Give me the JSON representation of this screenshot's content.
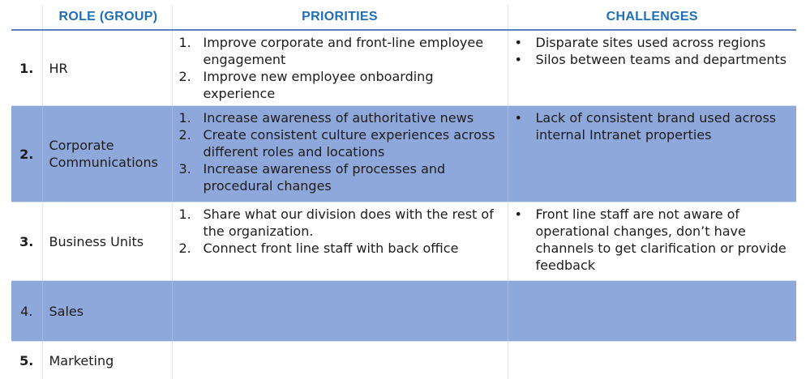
{
  "headers": {
    "role": "ROLE (GROUP)",
    "priorities": "PRIORITIES",
    "challenges": "CHALLENGES"
  },
  "rows": [
    {
      "num": "1.",
      "role": "HR",
      "priorities": [
        {
          "marker": "1.",
          "text": "Improve corporate and front-line employee engagement"
        },
        {
          "marker": "2.",
          "text": "Improve new employee onboarding experience"
        }
      ],
      "challenges": [
        {
          "marker": "•",
          "text": "Disparate sites used across regions"
        },
        {
          "marker": "•",
          "text": "Silos between teams and departments"
        }
      ]
    },
    {
      "num": "2.",
      "role": "Corporate Communications",
      "priorities": [
        {
          "marker": "1.",
          "text": "Increase awareness of authoritative news"
        },
        {
          "marker": "2.",
          "text": "Create consistent culture experiences across different roles and locations"
        },
        {
          "marker": "3.",
          "text": "Increase awareness of processes and procedural changes"
        }
      ],
      "challenges": [
        {
          "marker": "•",
          "text": "Lack of consistent brand used across internal Intranet properties"
        }
      ]
    },
    {
      "num": "3.",
      "role": "Business Units",
      "priorities": [
        {
          "marker": "1.",
          "text": "Share what our division does with the rest of the organization."
        },
        {
          "marker": "2.",
          "text": "Connect front line staff with back office"
        }
      ],
      "challenges": [
        {
          "marker": "•",
          "text": "Front line staff are not aware of operational changes, don’t have channels to get clarification or provide feedback"
        }
      ]
    },
    {
      "num": "4.",
      "role": "Sales",
      "priorities": [],
      "challenges": []
    },
    {
      "num": "5.",
      "role": "Marketing",
      "priorities": [],
      "challenges": []
    }
  ],
  "colors": {
    "header_text": "#1f6fb8",
    "shaded_row": "#8fa8dc",
    "header_rule": "#5b7fc3"
  }
}
